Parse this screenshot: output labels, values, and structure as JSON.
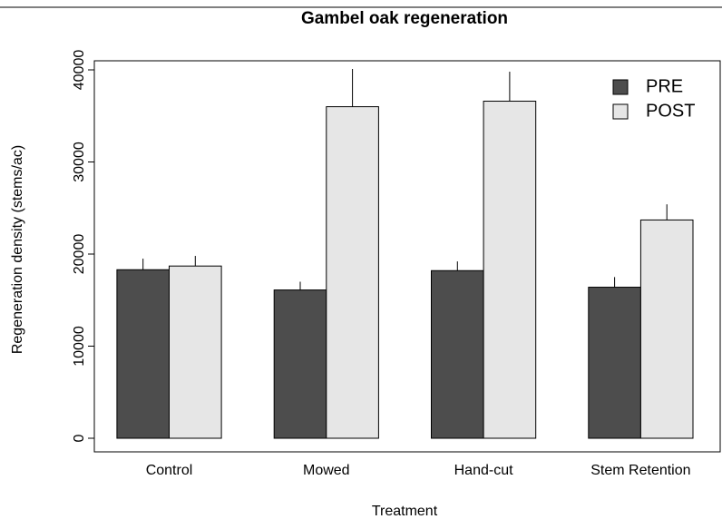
{
  "chart_data": {
    "type": "bar",
    "title": "Gambel oak regeneration",
    "x_label": "Treatment",
    "y_label": "Regeneration density (stems/ac)",
    "categories": [
      "Control",
      "Mowed",
      "Hand-cut",
      "Stem Retention"
    ],
    "series": [
      {
        "name": "PRE",
        "color": "#4d4d4d",
        "values": [
          18300,
          16100,
          18200,
          16400
        ],
        "errors": [
          1200,
          900,
          1000,
          1100
        ]
      },
      {
        "name": "POST",
        "color": "#e6e6e6",
        "values": [
          18700,
          36000,
          36600,
          23700
        ],
        "errors": [
          1100,
          4100,
          3200,
          1700
        ]
      }
    ],
    "ylim": [
      0,
      40000
    ],
    "yticks": [
      0,
      10000,
      20000,
      30000,
      40000
    ],
    "legend": "top-right"
  }
}
